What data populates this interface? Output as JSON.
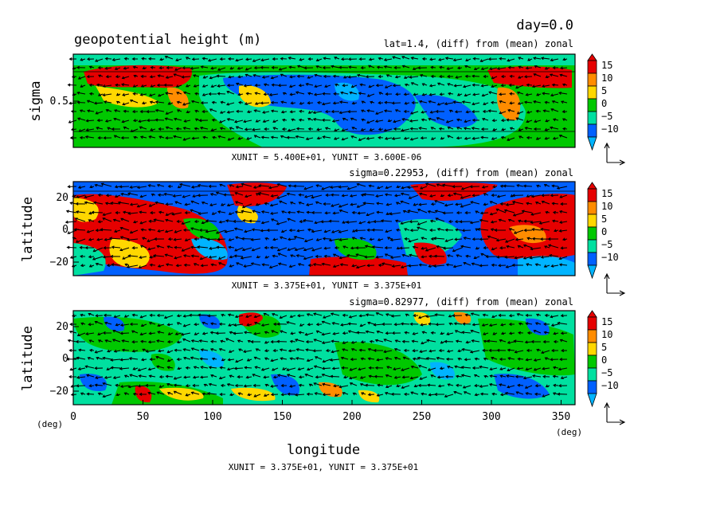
{
  "figure": {
    "day_label": "day=0.0",
    "title": "geopotential height (m)",
    "bottom_xlabel": "longitude",
    "bottom_xunit_left": "(deg)",
    "bottom_xunit_right": "(deg)",
    "bottom_unit_note": "XUNIT = 3.375E+01, YUNIT = 3.375E+01"
  },
  "colorbar": {
    "levels": [
      "15",
      "10",
      "5",
      "0",
      "−5",
      "−10"
    ],
    "colors": [
      "#e60000",
      "#ff8c00",
      "#ffd700",
      "#00c800",
      "#00e0a0",
      "#0060ff",
      "#00b4ff"
    ]
  },
  "chart_data": [
    {
      "type": "heatmap",
      "title": "geopotential height (m)",
      "subtitle": "lat=1.4, (diff) from (mean) zonal",
      "ylabel": "sigma",
      "yticks": [
        "0.5"
      ],
      "xlim": [
        0,
        360
      ],
      "vector_unit": "XUNIT = 5.400E+01, YUNIT = 3.600E-06"
    },
    {
      "type": "heatmap",
      "subtitle": "sigma=0.22953, (diff) from (mean) zonal",
      "ylabel": "latitude",
      "yticks": [
        "20",
        "0",
        "−20"
      ],
      "ylim": [
        -30,
        30
      ],
      "xlim": [
        0,
        360
      ],
      "vector_unit": "XUNIT = 3.375E+01, YUNIT = 3.375E+01"
    },
    {
      "type": "heatmap",
      "subtitle": "sigma=0.82977, (diff) from (mean) zonal",
      "ylabel": "latitude",
      "yticks": [
        "20",
        "0",
        "−20"
      ],
      "xticks": [
        "0",
        "50",
        "100",
        "150",
        "200",
        "250",
        "300",
        "350"
      ],
      "xlabel": "longitude",
      "ylim": [
        -30,
        30
      ],
      "xlim": [
        0,
        360
      ]
    }
  ]
}
